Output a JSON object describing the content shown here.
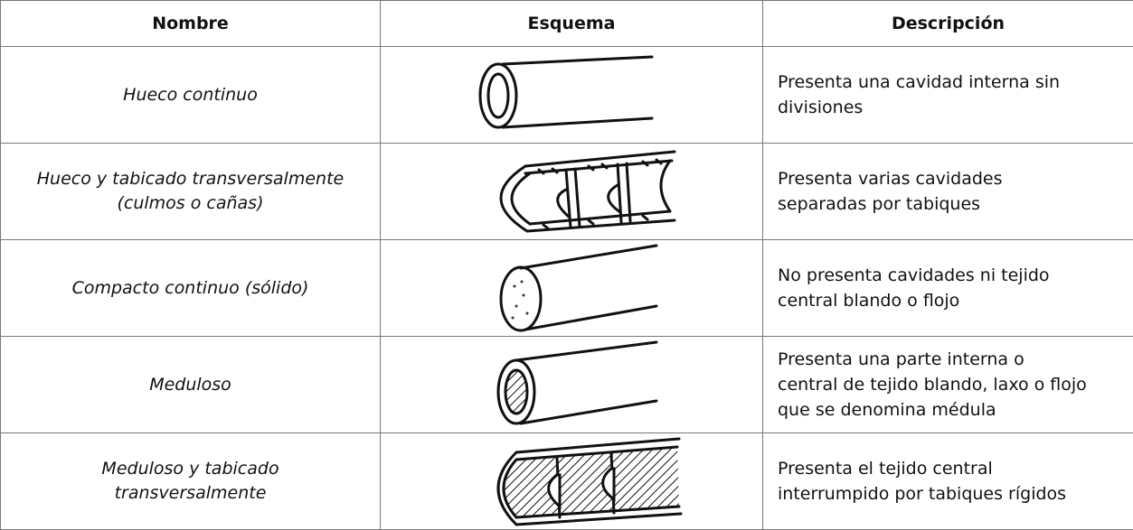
{
  "table": {
    "header": [
      "Nombre",
      "Esquema",
      "Descripción"
    ],
    "rows": [
      {
        "name": [
          "Hueco continuo"
        ],
        "description": [
          "Presenta una cavidad interna sin",
          "divisiones"
        ]
      },
      {
        "name": [
          "Hueco y tabicado transversalmente",
          "(culmos o cañas)"
        ],
        "description": [
          "Presenta varias cavidades",
          "separadas por tabiques"
        ]
      },
      {
        "name": [
          "Compacto continuo (sólido)"
        ],
        "description": [
          "No presenta cavidades ni tejido",
          "central blando o flojo"
        ]
      },
      {
        "name": [
          "Meduloso"
        ],
        "description": [
          "Presenta una parte interna o",
          "central de tejido blando, laxo o flojo",
          "que se denomina médula"
        ]
      },
      {
        "name": [
          "Meduloso y tabicado",
          "transversalmente"
        ],
        "description": [
          "Presenta el tejido central",
          "interrumpido por tabiques rígidos"
        ]
      }
    ]
  }
}
